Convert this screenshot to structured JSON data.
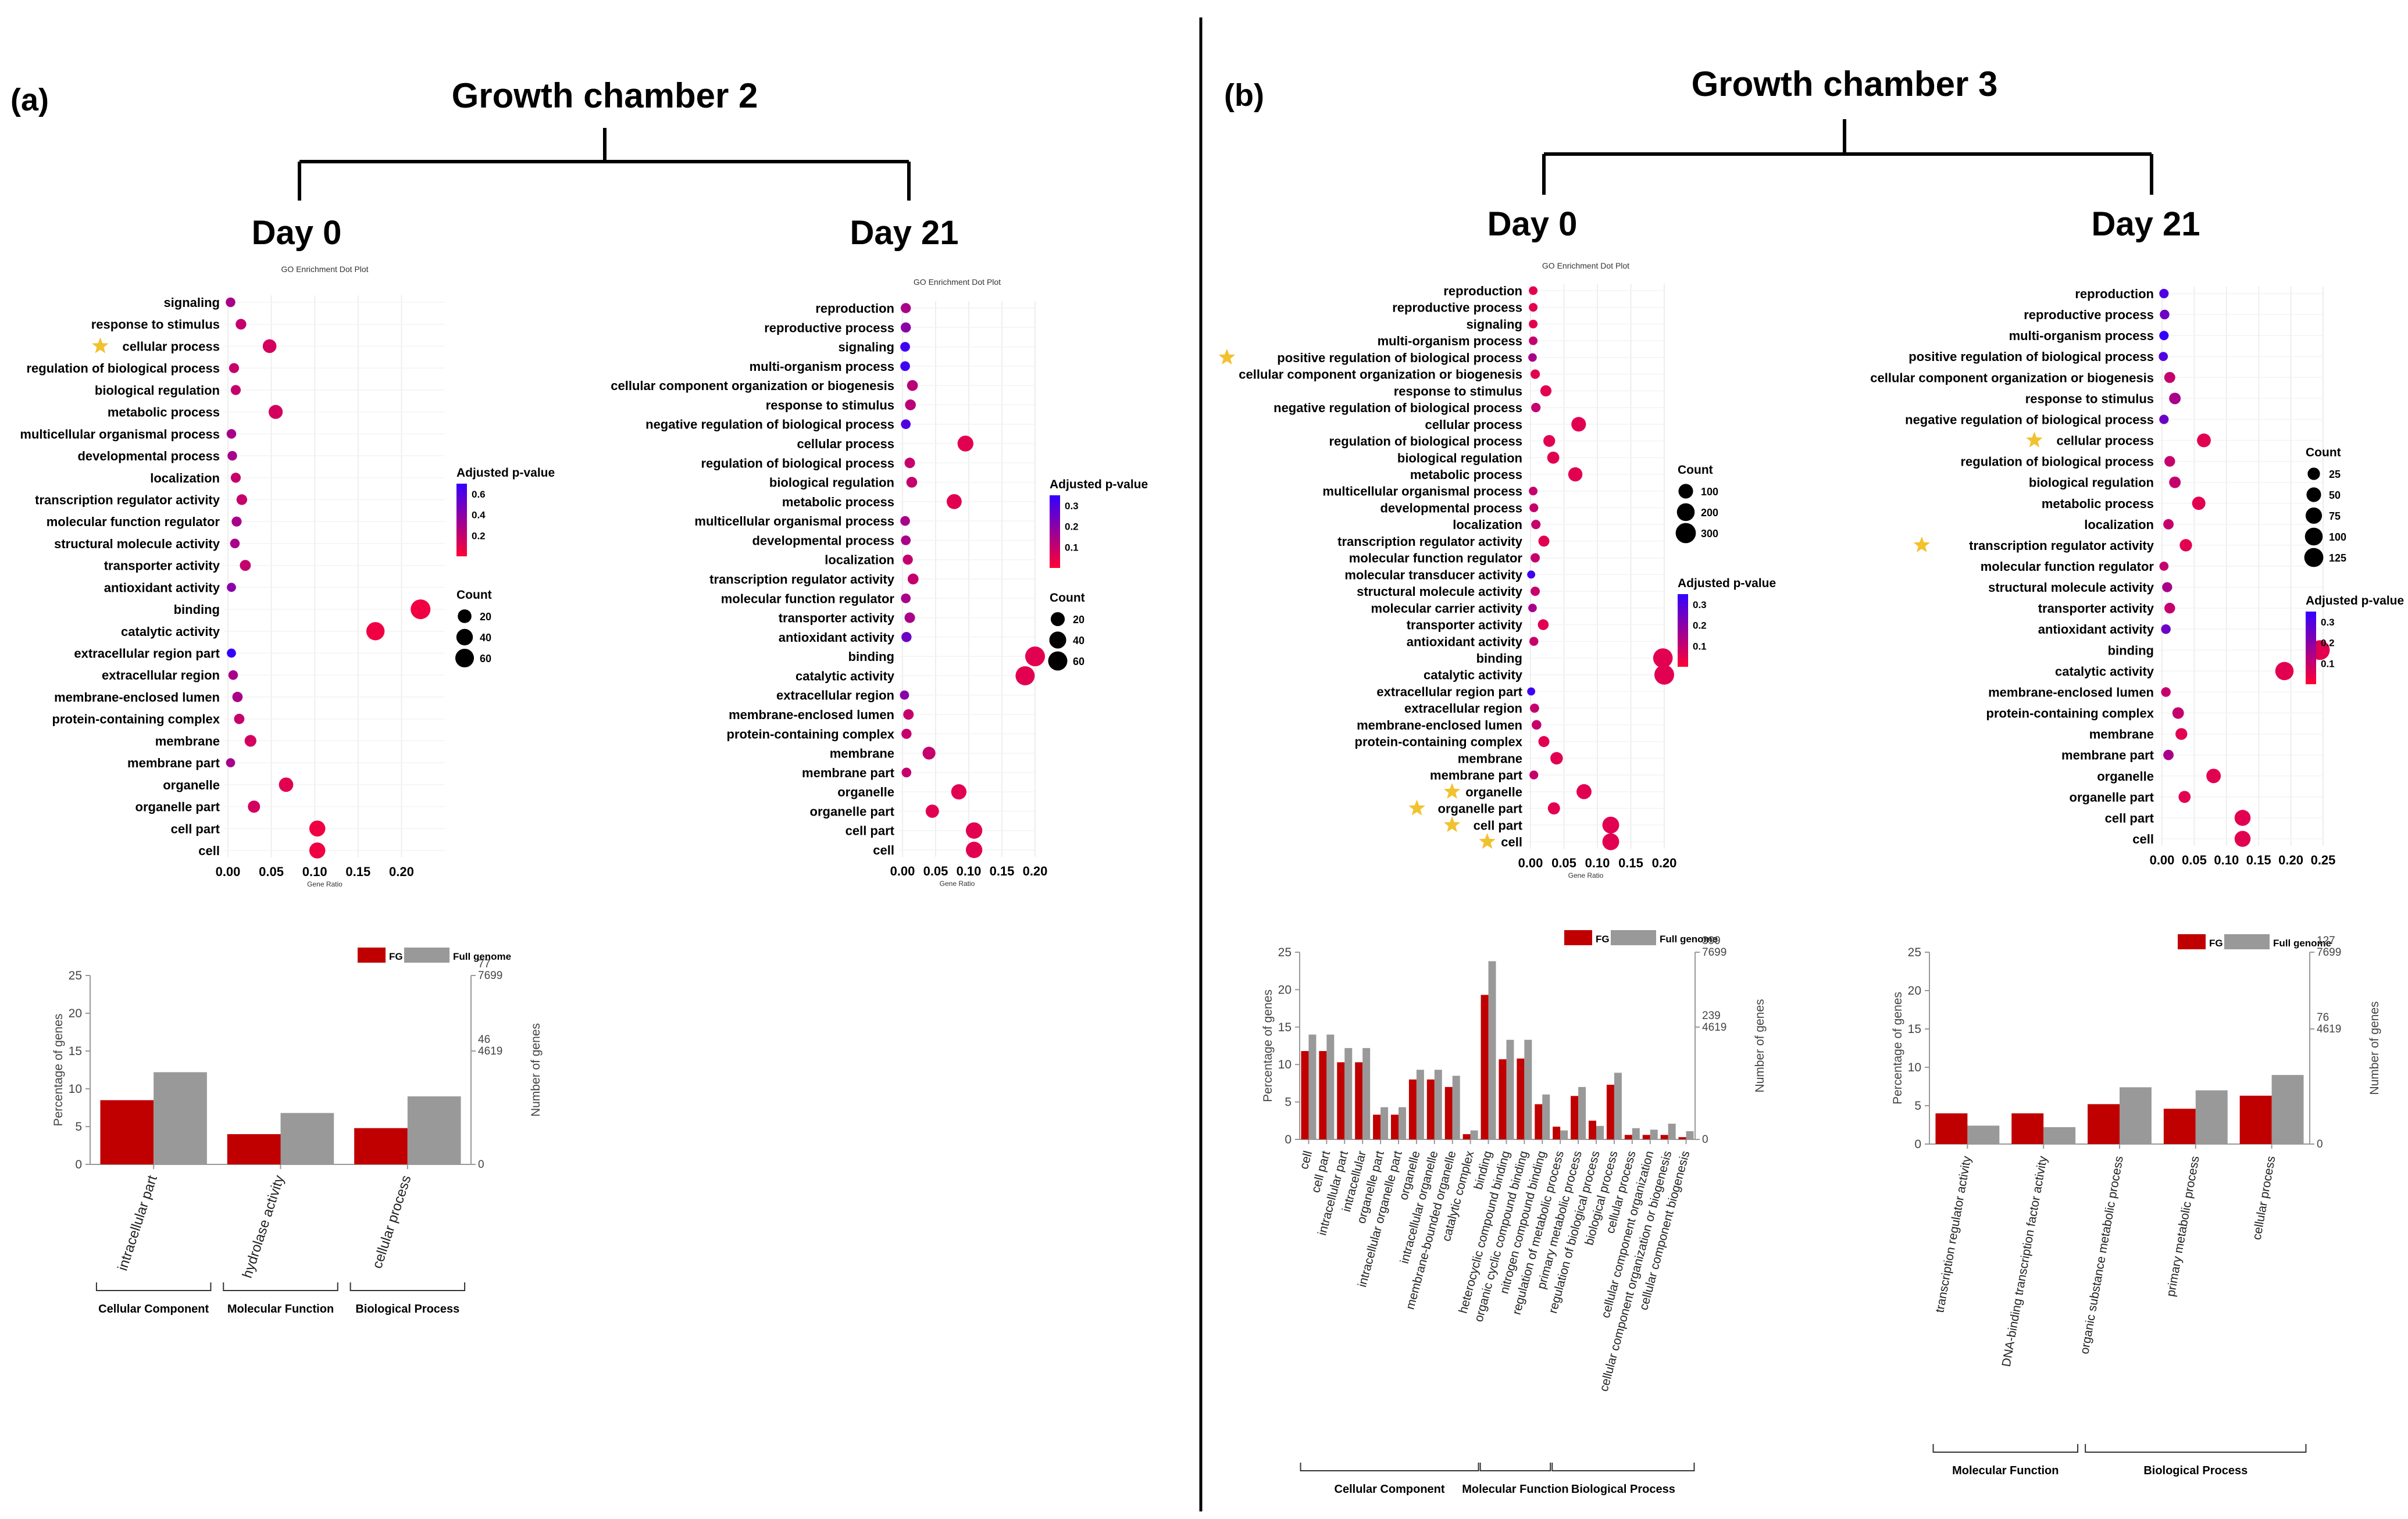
{
  "panels": [
    {
      "label": "(a)",
      "title": "Growth chamber 2",
      "days": [
        "Day 0",
        "Day 21"
      ],
      "bar_chart": {
        "legend": [
          "FG",
          "Full genome"
        ],
        "y_ticks": [
          0,
          5,
          10,
          15,
          20,
          25
        ],
        "ylabel": "Percentage of genes",
        "right_ylabel": "Number of genes",
        "right_ticks": [
          {
            "top": "77",
            "bottom": "7699",
            "pos": 25
          },
          {
            "top": "46",
            "bottom": "4619",
            "pos": 15
          },
          {
            "top": "",
            "bottom": "0",
            "pos": 0
          }
        ],
        "categories": [
          "intracellular part",
          "hydrolase activity",
          "cellular process"
        ],
        "fg": [
          8.5,
          4.0,
          4.8
        ],
        "full": [
          12.2,
          6.8,
          9.0
        ],
        "groups": [
          {
            "label": "Cellular Component",
            "from": 0,
            "to": 0
          },
          {
            "label": "Molecular Function",
            "from": 1,
            "to": 1
          },
          {
            "label": "Biological Process",
            "from": 2,
            "to": 2
          }
        ]
      }
    },
    {
      "label": "(b)",
      "title": "Growth chamber 3",
      "days": [
        "Day 0",
        "Day 21"
      ],
      "bar_chart": {
        "legend": [
          "FG",
          "Full genome"
        ],
        "y_ticks": [
          0,
          5,
          10,
          15,
          20,
          25
        ],
        "ylabel": "Percentage of genes",
        "right_ylabel": "Number of genes",
        "right_ticks": [
          {
            "top": "399",
            "bottom": "7699",
            "pos": 25
          },
          {
            "top": "239",
            "bottom": "4619",
            "pos": 15
          },
          {
            "top": "",
            "bottom": "0",
            "pos": 0
          }
        ],
        "categories": [
          "cell",
          "cell part",
          "intracellular part",
          "intracellular",
          "organelle part",
          "intracellular organelle part",
          "organelle",
          "intracellular organelle",
          "membrane-bounded organelle",
          "catalytic complex",
          "binding",
          "heterocyclic compound binding",
          "organic cyclic compound binding",
          "nitrogen compound binding",
          "regulation of metabolic process",
          "primary metabolic process",
          "regulation of biological process",
          "biological process",
          "cellular process",
          "cellular component organization",
          "cellular component organization or biogenesis",
          "cellular component biogenesis"
        ],
        "fg": [
          11.8,
          11.8,
          10.3,
          10.3,
          3.3,
          3.3,
          8.0,
          8.0,
          7.0,
          0.7,
          19.3,
          10.7,
          10.8,
          4.7,
          1.7,
          5.8,
          2.5,
          7.3,
          0.6,
          0.6,
          0.6,
          0.3
        ],
        "full": [
          14.0,
          14.0,
          12.2,
          12.2,
          4.3,
          4.3,
          9.3,
          9.3,
          8.5,
          1.2,
          23.8,
          13.3,
          13.3,
          6.0,
          1.2,
          7.0,
          1.8,
          8.9,
          1.5,
          1.3,
          2.1,
          1.1
        ],
        "groups": [
          {
            "label": "Cellular Component",
            "from": 0,
            "to": 9
          },
          {
            "label": "Molecular Function",
            "from": 10,
            "to": 13
          },
          {
            "label": "Biological Process",
            "from": 14,
            "to": 21
          }
        ]
      }
    }
  ],
  "bar_chart_b2": {
    "legend": [
      "FG",
      "Full genome"
    ],
    "y_ticks": [
      0,
      5,
      10,
      15,
      20,
      25
    ],
    "ylabel": "Percentage of genes",
    "right_ylabel": "Number of genes",
    "right_ticks": [
      {
        "top": "127",
        "bottom": "7699",
        "pos": 25
      },
      {
        "top": "76",
        "bottom": "4619",
        "pos": 15
      },
      {
        "top": "",
        "bottom": "0",
        "pos": 0
      }
    ],
    "categories": [
      "transcription regulator activity",
      "DNA-binding transcription factor activity",
      "organic substance metabolic process",
      "primary metabolic process",
      "cellular process"
    ],
    "fg": [
      4.0,
      4.0,
      5.2,
      4.6,
      6.3
    ],
    "full": [
      2.4,
      2.2,
      7.4,
      7.0,
      9.0
    ],
    "groups": [
      {
        "label": "Molecular Function",
        "from": 0,
        "to": 1
      },
      {
        "label": "Biological Process",
        "from": 2,
        "to": 4
      }
    ]
  },
  "dot_plots": [
    {
      "id": "a-day0",
      "title": "GO Enrichment Dot Plot",
      "xlabel": "Gene Ratio",
      "x_ticks": [
        "0.00",
        "0.05",
        "0.10",
        "0.15",
        "0.20"
      ],
      "xlim": [
        0,
        0.25
      ],
      "terms": [
        "signaling",
        "response to stimulus",
        "cellular process",
        "regulation of biological process",
        "biological regulation",
        "metabolic process",
        "multicellular organismal process",
        "developmental process",
        "localization",
        "transcription regulator activity",
        "molecular function regulator",
        "structural molecule activity",
        "transporter activity",
        "antioxidant activity",
        "binding",
        "catalytic activity",
        "extracellular region part",
        "extracellular region",
        "membrane-enclosed lumen",
        "protein-containing complex",
        "membrane",
        "membrane part",
        "organelle",
        "organelle part",
        "cell part",
        "cell"
      ],
      "ratios": [
        0.003,
        0.015,
        0.048,
        0.007,
        0.009,
        0.055,
        0.004,
        0.005,
        0.009,
        0.016,
        0.01,
        0.008,
        0.02,
        0.004,
        0.222,
        0.17,
        0.004,
        0.006,
        0.011,
        0.013,
        0.026,
        0.003,
        0.067,
        0.03,
        0.103,
        0.103
      ],
      "counts": [
        3,
        6,
        20,
        4,
        4,
        22,
        3,
        3,
        4,
        6,
        4,
        3,
        7,
        2,
        72,
        56,
        2,
        3,
        5,
        5,
        10,
        2,
        24,
        12,
        36,
        36
      ],
      "padj": [
        0.3,
        0.2,
        0.15,
        0.2,
        0.2,
        0.15,
        0.3,
        0.3,
        0.2,
        0.2,
        0.3,
        0.3,
        0.2,
        0.4,
        0.05,
        0.05,
        0.7,
        0.3,
        0.3,
        0.2,
        0.15,
        0.3,
        0.1,
        0.15,
        0.05,
        0.05
      ],
      "stars": [
        "cellular process"
      ],
      "padj_legend": {
        "title": "Adjusted p-value",
        "ticks": [
          "0.6",
          "0.4",
          "0.2"
        ],
        "max": 0.7
      },
      "count_legend": {
        "title": "Count",
        "values": [
          20,
          40,
          60
        ]
      }
    },
    {
      "id": "a-day21",
      "title": "GO Enrichment Dot Plot",
      "xlabel": "Gene Ratio",
      "x_ticks": [
        "0.00",
        "0.05",
        "0.10",
        "0.15",
        "0.20"
      ],
      "xlim": [
        0,
        0.2
      ],
      "terms": [
        "reproduction",
        "reproductive process",
        "signaling",
        "multi-organism process",
        "cellular component organization or biogenesis",
        "response to stimulus",
        "negative regulation of biological process",
        "cellular process",
        "regulation of biological process",
        "biological regulation",
        "metabolic process",
        "multicellular organismal process",
        "developmental process",
        "localization",
        "transcription regulator activity",
        "molecular function regulator",
        "transporter activity",
        "antioxidant activity",
        "binding",
        "catalytic activity",
        "extracellular region",
        "membrane-enclosed lumen",
        "protein-containing complex",
        "membrane",
        "membrane part",
        "organelle",
        "organelle part",
        "cell part",
        "cell"
      ],
      "ratios": [
        0.005,
        0.005,
        0.004,
        0.004,
        0.015,
        0.012,
        0.005,
        0.095,
        0.011,
        0.014,
        0.078,
        0.004,
        0.005,
        0.008,
        0.016,
        0.005,
        0.011,
        0.006,
        0.2,
        0.185,
        0.003,
        0.009,
        0.006,
        0.04,
        0.006,
        0.085,
        0.045,
        0.108,
        0.108
      ],
      "counts": [
        4,
        4,
        3,
        3,
        6,
        6,
        3,
        32,
        5,
        6,
        26,
        3,
        3,
        4,
        6,
        3,
        5,
        4,
        66,
        60,
        2,
        5,
        4,
        14,
        3,
        28,
        16,
        36,
        36
      ],
      "padj": [
        0.15,
        0.2,
        0.33,
        0.33,
        0.12,
        0.12,
        0.3,
        0.05,
        0.1,
        0.1,
        0.05,
        0.15,
        0.15,
        0.1,
        0.1,
        0.15,
        0.15,
        0.25,
        0.05,
        0.05,
        0.2,
        0.1,
        0.1,
        0.1,
        0.1,
        0.05,
        0.05,
        0.05,
        0.05
      ],
      "stars": [],
      "padj_legend": {
        "title": "Adjusted p-value",
        "ticks": [
          "0.3",
          "0.2",
          "0.1"
        ],
        "max": 0.35
      },
      "count_legend": {
        "title": "Count",
        "values": [
          20,
          40,
          60
        ]
      }
    },
    {
      "id": "b-day0",
      "title": "GO Enrichment Dot Plot",
      "xlabel": "Gene Ratio",
      "x_ticks": [
        "0.00",
        "0.05",
        "0.10",
        "0.15",
        "0.20"
      ],
      "xlim": [
        0,
        0.2
      ],
      "terms": [
        "reproduction",
        "reproductive process",
        "signaling",
        "multi-organism process",
        "positive regulation of biological process",
        "cellular component organization or biogenesis",
        "response to stimulus",
        "negative regulation of biological process",
        "cellular process",
        "regulation of biological process",
        "biological regulation",
        "metabolic process",
        "multicellular organismal process",
        "developmental process",
        "localization",
        "transcription regulator activity",
        "molecular function regulator",
        "molecular transducer activity",
        "structural molecule activity",
        "molecular carrier activity",
        "transporter activity",
        "antioxidant activity",
        "binding",
        "catalytic activity",
        "extracellular region part",
        "extracellular region",
        "membrane-enclosed lumen",
        "protein-containing complex",
        "membrane",
        "membrane part",
        "organelle",
        "organelle part",
        "cell part",
        "cell"
      ],
      "ratios": [
        0.004,
        0.004,
        0.004,
        0.004,
        0.003,
        0.007,
        0.023,
        0.008,
        0.072,
        0.028,
        0.034,
        0.067,
        0.004,
        0.005,
        0.008,
        0.02,
        0.007,
        0.001,
        0.007,
        0.003,
        0.019,
        0.005,
        0.198,
        0.2,
        0.001,
        0.006,
        0.009,
        0.02,
        0.039,
        0.005,
        0.08,
        0.035,
        0.12,
        0.12
      ],
      "counts": [
        5,
        5,
        5,
        5,
        4,
        10,
        30,
        10,
        100,
        40,
        45,
        90,
        5,
        6,
        10,
        28,
        9,
        2,
        9,
        4,
        25,
        7,
        270,
        280,
        2,
        8,
        12,
        28,
        52,
        6,
        110,
        46,
        165,
        165
      ],
      "padj": [
        0.05,
        0.05,
        0.05,
        0.1,
        0.15,
        0.05,
        0.05,
        0.1,
        0.05,
        0.05,
        0.05,
        0.05,
        0.1,
        0.1,
        0.1,
        0.05,
        0.1,
        0.33,
        0.1,
        0.15,
        0.05,
        0.1,
        0.05,
        0.05,
        0.33,
        0.1,
        0.1,
        0.05,
        0.05,
        0.1,
        0.05,
        0.05,
        0.05,
        0.05
      ],
      "stars": [
        "positive regulation of biological process",
        "organelle",
        "organelle part",
        "cell part",
        "cell"
      ],
      "padj_legend": {
        "title": "Adjusted p-value",
        "ticks": [
          "0.3",
          "0.2",
          "0.1"
        ],
        "max": 0.35
      },
      "count_legend": {
        "title": "Count",
        "values": [
          100,
          200,
          300
        ]
      }
    },
    {
      "id": "b-day21",
      "title": "",
      "xlabel": "",
      "x_ticks": [
        "0.00",
        "0.05",
        "0.10",
        "0.15",
        "0.20",
        "0.25"
      ],
      "xlim": [
        0,
        0.25
      ],
      "terms": [
        "reproduction",
        "reproductive process",
        "multi-organism process",
        "positive regulation of biological process",
        "cellular component organization or biogenesis",
        "response to stimulus",
        "negative regulation of biological process",
        "cellular process",
        "regulation of biological process",
        "biological regulation",
        "metabolic process",
        "localization",
        "transcription regulator activity",
        "molecular function regulator",
        "structural molecule activity",
        "transporter activity",
        "antioxidant activity",
        "binding",
        "catalytic activity",
        "membrane-enclosed lumen",
        "protein-containing complex",
        "membrane",
        "membrane part",
        "organelle",
        "organelle part",
        "cell part",
        "cell"
      ],
      "ratios": [
        0.003,
        0.004,
        0.003,
        0.002,
        0.012,
        0.02,
        0.003,
        0.065,
        0.012,
        0.02,
        0.057,
        0.01,
        0.037,
        0.003,
        0.008,
        0.012,
        0.006,
        0.245,
        0.19,
        0.006,
        0.025,
        0.03,
        0.01,
        0.08,
        0.035,
        0.125,
        0.125
      ],
      "counts": [
        5,
        6,
        5,
        4,
        14,
        18,
        5,
        40,
        12,
        18,
        35,
        10,
        25,
        4,
        8,
        12,
        6,
        140,
        110,
        6,
        18,
        20,
        10,
        48,
        22,
        70,
        70
      ],
      "padj": [
        0.3,
        0.25,
        0.35,
        0.3,
        0.1,
        0.15,
        0.25,
        0.05,
        0.1,
        0.1,
        0.05,
        0.1,
        0.05,
        0.1,
        0.15,
        0.1,
        0.25,
        0.05,
        0.05,
        0.1,
        0.1,
        0.05,
        0.15,
        0.05,
        0.05,
        0.05,
        0.05
      ],
      "stars": [
        "cellular process",
        "transcription regulator activity"
      ],
      "padj_legend": {
        "title": "Adjusted p-value",
        "ticks": [
          "0.3",
          "0.2",
          "0.1"
        ],
        "max": 0.35
      },
      "count_legend": {
        "title": "Count",
        "values": [
          25,
          50,
          75,
          100,
          125
        ]
      }
    }
  ],
  "colors": {
    "fg": "#c00000",
    "full": "#999999",
    "dot_low": "#ff0033",
    "dot_high": "#3300ff",
    "star": "#f2c12e"
  }
}
